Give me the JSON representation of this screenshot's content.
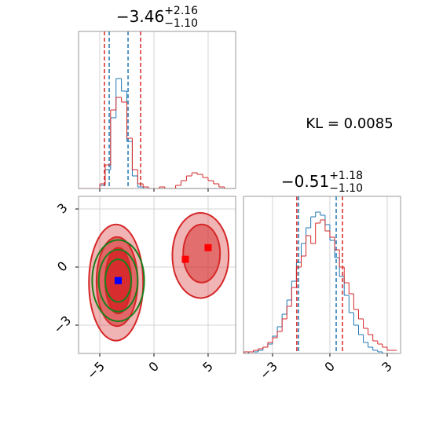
{
  "annotation": "KL = 0.0085",
  "chart_data": [
    {
      "type": "histogram",
      "title": {
        "main": "−3.46",
        "plus": "+2.16",
        "minus": "−1.10"
      },
      "xlim": [
        -6.96,
        7.54
      ],
      "ylim": [
        0,
        100
      ],
      "xticks": [
        -5,
        0,
        5
      ],
      "grid": true,
      "bins": [
        -7,
        -6.5,
        -6,
        -5.5,
        -5,
        -4.5,
        -4,
        -3.5,
        -3,
        -2.5,
        -2,
        -1.5,
        -1,
        -0.5,
        0,
        0.5,
        1,
        1.5,
        2,
        2.5,
        3,
        3.5,
        4,
        4.5,
        5,
        5.5,
        6,
        6.5,
        7,
        7.5
      ],
      "series": [
        {
          "color": "#1f77b4",
          "values": [
            0,
            0,
            0,
            0,
            2,
            12,
            45,
            70,
            62,
            30,
            8,
            1,
            0,
            0,
            0,
            0,
            0,
            0,
            0,
            0,
            0,
            0,
            0,
            0,
            0,
            0,
            0,
            0,
            0
          ],
          "quantiles": [
            -4.13,
            -2.39
          ]
        },
        {
          "color": "#d62728",
          "values": [
            0,
            0,
            0,
            0,
            3,
            15,
            50,
            58,
            55,
            32,
            12,
            3,
            1,
            0,
            0,
            1,
            0,
            0,
            2,
            5,
            8,
            10,
            9,
            7,
            5,
            3,
            1,
            0,
            0
          ],
          "quantiles": [
            -4.57,
            -1.23
          ]
        }
      ]
    },
    {
      "type": "contour",
      "xlim": [
        -6.96,
        7.54
      ],
      "ylim": [
        -4.46,
        3.65
      ],
      "grid": true,
      "xticks": [
        {
          "value": -5,
          "label": "−5"
        },
        0,
        5
      ],
      "yticks": [
        {
          "value": -3,
          "label": "−3"
        },
        0,
        3
      ],
      "contours": [
        {
          "color": "#d62728",
          "fill_opacity": 0.35,
          "cx": -3.5,
          "cy": -0.8,
          "rx": 2.5,
          "ry": 3.0
        },
        {
          "color": "#d62728",
          "fill_opacity": 0.55,
          "cx": -3.4,
          "cy": -0.75,
          "rx": 1.9,
          "ry": 2.3
        },
        {
          "color": "#d62728",
          "fill_opacity": 0.9,
          "cx": -3.3,
          "cy": -0.7,
          "rx": 1.2,
          "ry": 1.7
        },
        {
          "color": "#d62728",
          "fill_opacity": 0.35,
          "cx": 4.3,
          "cy": 0.6,
          "rx": 2.6,
          "ry": 2.2
        },
        {
          "color": "#d62728",
          "fill_opacity": 0.5,
          "cx": 4.4,
          "cy": 0.7,
          "rx": 1.7,
          "ry": 1.5
        },
        {
          "color": "#1a7f1a",
          "fill_opacity": 0,
          "cx": -3.3,
          "cy": -0.7,
          "rx": 2.4,
          "ry": 2.1
        },
        {
          "color": "#1a7f1a",
          "fill_opacity": 0,
          "cx": -3.3,
          "cy": -0.7,
          "rx": 1.8,
          "ry": 1.6
        },
        {
          "color": "#1a7f1a",
          "fill_opacity": 0,
          "cx": -3.3,
          "cy": -0.7,
          "rx": 1.2,
          "ry": 1.1
        }
      ],
      "markers": [
        {
          "x": -3.3,
          "y": -0.7,
          "color": "#0000ff"
        },
        {
          "x": 2.9,
          "y": 0.4,
          "color": "#ff0000"
        },
        {
          "x": 5.0,
          "y": 1.0,
          "color": "#ff0000"
        }
      ]
    },
    {
      "type": "histogram",
      "title": {
        "main": "−0.51",
        "plus": "+1.18",
        "minus": "−1.10"
      },
      "xlim": [
        -4.52,
        3.7
      ],
      "ylim": [
        0,
        100
      ],
      "grid": true,
      "xticks": [
        {
          "value": -3,
          "label": "−3"
        },
        0,
        3
      ],
      "bins": [
        -4.5,
        -4.25,
        -4,
        -3.75,
        -3.5,
        -3.25,
        -3,
        -2.75,
        -2.5,
        -2.25,
        -2,
        -1.75,
        -1.5,
        -1.25,
        -1,
        -0.75,
        -0.5,
        -0.25,
        0,
        0.25,
        0.5,
        0.75,
        1,
        1.25,
        1.5,
        1.75,
        2,
        2.25,
        2.5,
        2.75,
        3,
        3.25,
        3.5
      ],
      "series": [
        {
          "color": "#1f77b4",
          "values": [
            0,
            1,
            1,
            2,
            4,
            6,
            11,
            17,
            25,
            34,
            46,
            58,
            70,
            80,
            87,
            90,
            88,
            82,
            72,
            61,
            49,
            37,
            26,
            18,
            12,
            7,
            4,
            2,
            1,
            0,
            0,
            0
          ],
          "quantiles": [
            -1.64,
            0.33
          ]
        },
        {
          "color": "#d62728",
          "values": [
            1,
            1,
            2,
            3,
            4,
            7,
            10,
            14,
            22,
            30,
            42,
            55,
            62,
            75,
            70,
            83,
            85,
            78,
            74,
            66,
            55,
            45,
            38,
            28,
            22,
            16,
            12,
            8,
            6,
            4,
            2,
            2
          ],
          "quantiles": [
            -1.73,
            0.66
          ]
        }
      ]
    }
  ]
}
